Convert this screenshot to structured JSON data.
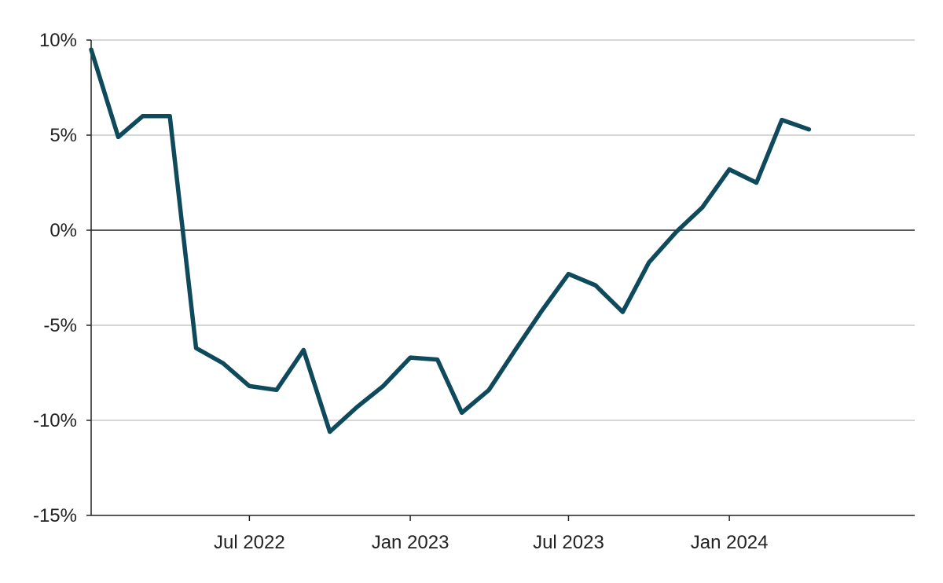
{
  "chart_data": {
    "type": "line",
    "title": "",
    "xlabel": "",
    "ylabel": "",
    "x_ticks": [
      {
        "date": "2022-07-01",
        "label": "Jul 2022"
      },
      {
        "date": "2023-01-01",
        "label": "Jan 2023"
      },
      {
        "date": "2023-07-01",
        "label": "Jul 2023"
      },
      {
        "date": "2024-01-01",
        "label": "Jan 2024"
      }
    ],
    "y_ticks": [
      {
        "value": 10,
        "label": "10%"
      },
      {
        "value": 5,
        "label": "5%"
      },
      {
        "value": 0,
        "label": "0%"
      },
      {
        "value": -5,
        "label": "-5%"
      },
      {
        "value": -10,
        "label": "-10%"
      },
      {
        "value": -15,
        "label": "-15%"
      }
    ],
    "xlim": [
      "2022-01-01",
      "2024-07-31"
    ],
    "ylim": [
      -15,
      10
    ],
    "grid": "horizontal",
    "legend": "none",
    "series": [
      {
        "color": "#0e4a5c",
        "points": [
          {
            "x": "2022-01-01",
            "y": 9.5
          },
          {
            "x": "2022-02-01",
            "y": 4.9
          },
          {
            "x": "2022-03-01",
            "y": 6.0
          },
          {
            "x": "2022-04-01",
            "y": 6.0
          },
          {
            "x": "2022-05-01",
            "y": -6.2
          },
          {
            "x": "2022-06-01",
            "y": -7.0
          },
          {
            "x": "2022-07-01",
            "y": -8.2
          },
          {
            "x": "2022-08-01",
            "y": -8.4
          },
          {
            "x": "2022-09-01",
            "y": -6.3
          },
          {
            "x": "2022-10-01",
            "y": -10.6
          },
          {
            "x": "2022-11-01",
            "y": -9.3
          },
          {
            "x": "2022-12-01",
            "y": -8.2
          },
          {
            "x": "2023-01-01",
            "y": -6.7
          },
          {
            "x": "2023-02-01",
            "y": -6.8
          },
          {
            "x": "2023-03-01",
            "y": -9.6
          },
          {
            "x": "2023-04-01",
            "y": -8.4
          },
          {
            "x": "2023-05-01",
            "y": -6.3
          },
          {
            "x": "2023-06-01",
            "y": -4.2
          },
          {
            "x": "2023-07-01",
            "y": -2.3
          },
          {
            "x": "2023-08-01",
            "y": -2.9
          },
          {
            "x": "2023-09-01",
            "y": -4.3
          },
          {
            "x": "2023-10-01",
            "y": -1.7
          },
          {
            "x": "2023-11-01",
            "y": -0.1
          },
          {
            "x": "2023-12-01",
            "y": 1.2
          },
          {
            "x": "2024-01-01",
            "y": 3.2
          },
          {
            "x": "2024-02-01",
            "y": 2.5
          },
          {
            "x": "2024-03-01",
            "y": 5.8
          },
          {
            "x": "2024-04-01",
            "y": 5.3
          }
        ]
      }
    ]
  }
}
